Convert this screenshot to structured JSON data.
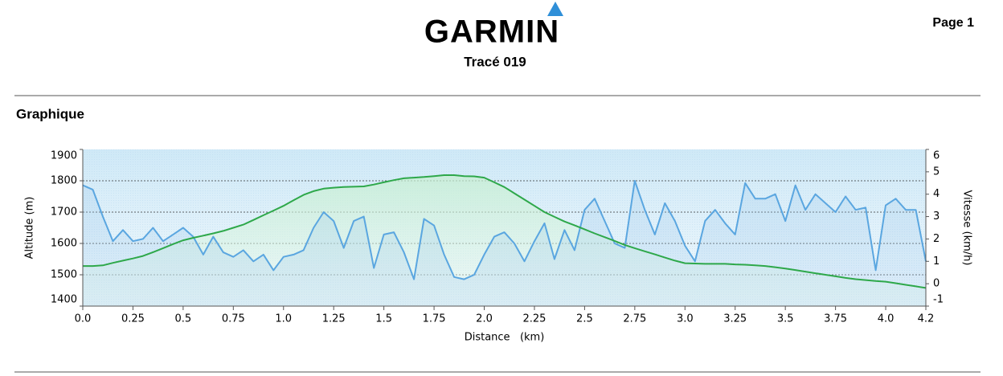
{
  "header": {
    "logo": "GARMIN",
    "page": "Page 1",
    "title": "Tracé 019"
  },
  "section": "Graphique",
  "chart_data": {
    "type": "line",
    "x_label": "Distance   (km)",
    "y_label": "Altitude (m)",
    "y2_label": "Vitesse (km/h)",
    "x": [
      0,
      0.05,
      0.1,
      0.15,
      0.2,
      0.25,
      0.3,
      0.35,
      0.4,
      0.45,
      0.5,
      0.55,
      0.6,
      0.65,
      0.7,
      0.75,
      0.8,
      0.85,
      0.9,
      0.95,
      1.0,
      1.05,
      1.1,
      1.15,
      1.2,
      1.25,
      1.3,
      1.35,
      1.4,
      1.45,
      1.5,
      1.55,
      1.6,
      1.65,
      1.7,
      1.75,
      1.8,
      1.85,
      1.9,
      1.95,
      2.0,
      2.05,
      2.1,
      2.15,
      2.2,
      2.25,
      2.3,
      2.35,
      2.4,
      2.45,
      2.5,
      2.55,
      2.6,
      2.65,
      2.7,
      2.75,
      2.8,
      2.85,
      2.9,
      2.95,
      3.0,
      3.05,
      3.1,
      3.15,
      3.2,
      3.25,
      3.3,
      3.35,
      3.4,
      3.45,
      3.5,
      3.55,
      3.6,
      3.65,
      3.7,
      3.75,
      3.8,
      3.85,
      3.9,
      3.95,
      4.0,
      4.05,
      4.1,
      4.15,
      4.2
    ],
    "series": [
      {
        "name": "Altitude",
        "color": "#2ea84a",
        "axis": "y",
        "values": [
          1528,
          1528,
          1530,
          1538,
          1545,
          1552,
          1560,
          1572,
          1585,
          1598,
          1610,
          1618,
          1625,
          1632,
          1640,
          1650,
          1660,
          1675,
          1690,
          1705,
          1720,
          1738,
          1755,
          1767,
          1775,
          1778,
          1780,
          1781,
          1782,
          1788,
          1795,
          1802,
          1808,
          1810,
          1812,
          1815,
          1818,
          1818,
          1815,
          1814,
          1810,
          1795,
          1780,
          1760,
          1740,
          1720,
          1700,
          1685,
          1670,
          1658,
          1645,
          1632,
          1620,
          1608,
          1595,
          1585,
          1575,
          1565,
          1555,
          1545,
          1537,
          1536,
          1535,
          1535,
          1535,
          1533,
          1532,
          1530,
          1528,
          1524,
          1520,
          1515,
          1510,
          1505,
          1500,
          1495,
          1490,
          1486,
          1483,
          1480,
          1478,
          1473,
          1468,
          1463,
          1458
        ]
      },
      {
        "name": "Vitesse",
        "color": "#5aa6e0",
        "axis": "y2",
        "values": [
          4.4,
          4.2,
          3.0,
          1.9,
          2.4,
          1.9,
          2.0,
          2.5,
          1.9,
          2.2,
          2.5,
          2.1,
          1.3,
          2.1,
          1.4,
          1.2,
          1.5,
          1.0,
          1.3,
          0.6,
          1.2,
          1.3,
          1.5,
          2.5,
          3.2,
          2.8,
          1.6,
          2.8,
          3.0,
          0.7,
          2.2,
          2.3,
          1.4,
          0.2,
          2.9,
          2.6,
          1.3,
          0.3,
          0.2,
          0.4,
          1.3,
          2.1,
          2.3,
          1.8,
          1.0,
          1.9,
          2.7,
          1.1,
          2.4,
          1.5,
          3.3,
          3.8,
          2.8,
          1.8,
          1.6,
          4.6,
          3.3,
          2.2,
          3.6,
          2.8,
          1.7,
          1.0,
          2.8,
          3.3,
          2.7,
          2.2,
          4.5,
          3.8,
          3.8,
          4.0,
          2.8,
          4.4,
          3.3,
          4.0,
          3.6,
          3.2,
          3.9,
          3.3,
          3.4,
          0.6,
          3.5,
          3.8,
          3.3,
          3.3,
          1.0
        ]
      }
    ],
    "xlim": [
      0,
      4.2
    ],
    "xticks": [
      {
        "value": 0,
        "label": "0.0"
      },
      0.25,
      0.5,
      0.75,
      {
        "value": 1,
        "label": "1.0"
      },
      1.25,
      1.5,
      1.75,
      {
        "value": 2,
        "label": "2.0"
      },
      2.25,
      2.5,
      2.75,
      {
        "value": 3,
        "label": "3.0"
      },
      3.25,
      3.5,
      3.75,
      {
        "value": 4,
        "label": "4.0"
      },
      4.2
    ],
    "ylim": [
      1400,
      1900
    ],
    "yticks": [
      1400,
      1500,
      1600,
      1700,
      1800,
      1900
    ],
    "y2lim": [
      -1,
      6
    ],
    "y2ticks": [
      -1,
      0,
      1,
      2,
      3,
      4,
      5,
      6
    ],
    "grid": true
  }
}
